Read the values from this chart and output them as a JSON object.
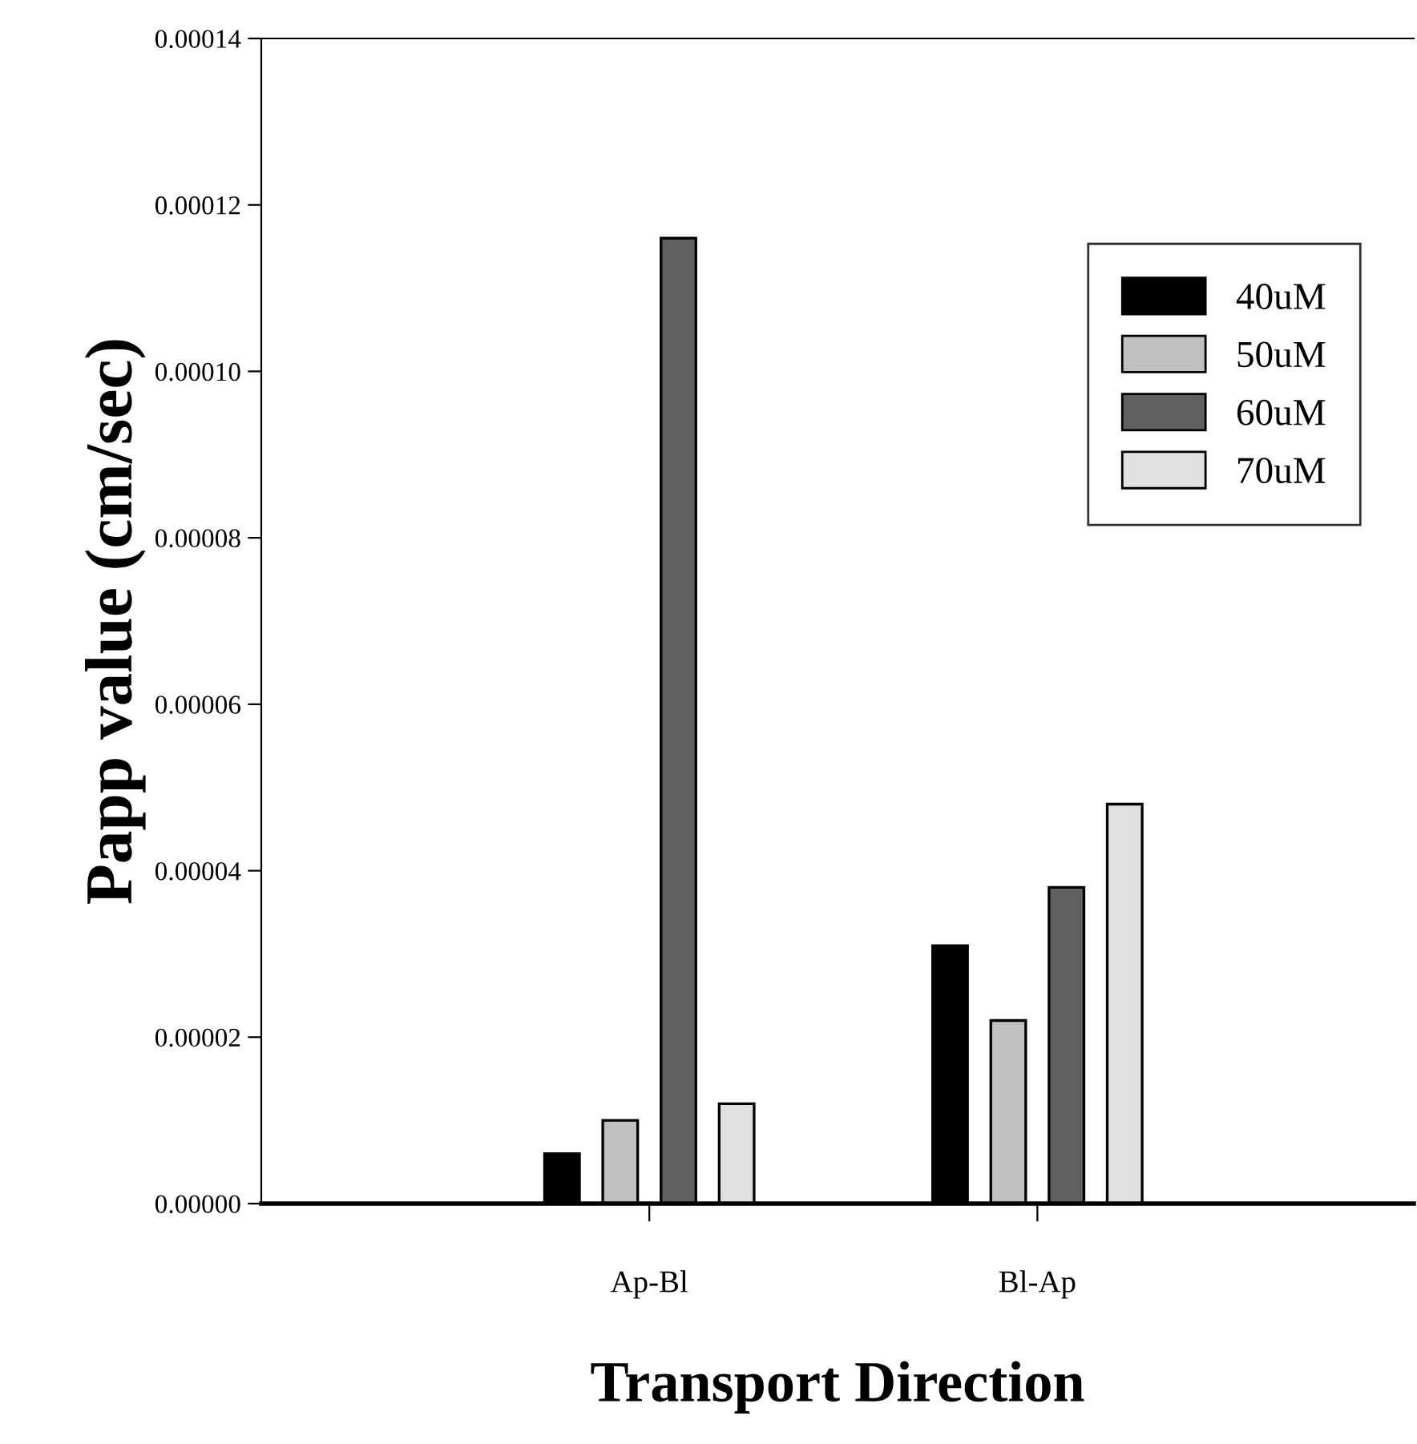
{
  "chart_data": {
    "type": "bar",
    "xlabel": "Transport Direction",
    "ylabel": "Papp value (cm/sec)",
    "categories": [
      "Ap-Bl",
      "Bl-Ap"
    ],
    "series": [
      {
        "name": "40uM",
        "color": "#000000",
        "values": [
          6e-06,
          3.1e-05
        ]
      },
      {
        "name": "50uM",
        "color": "#c0c0c0",
        "values": [
          1e-05,
          2.2e-05
        ]
      },
      {
        "name": "60uM",
        "color": "#606060",
        "values": [
          0.000116,
          3.8e-05
        ]
      },
      {
        "name": "70uM",
        "color": "#e0e0e0",
        "values": [
          1.2e-05,
          4.8e-05
        ]
      }
    ],
    "ylim": [
      0,
      0.00014
    ],
    "yticks": [
      {
        "value": 0,
        "label": "0.00000"
      },
      {
        "value": 2e-05,
        "label": "0.00002"
      },
      {
        "value": 4e-05,
        "label": "0.00004"
      },
      {
        "value": 6e-05,
        "label": "0.00006"
      },
      {
        "value": 8e-05,
        "label": "0.00008"
      },
      {
        "value": 0.0001,
        "label": "0.00010"
      },
      {
        "value": 0.00012,
        "label": "0.00012"
      },
      {
        "value": 0.00014,
        "label": "0.00014"
      }
    ],
    "grid": false,
    "legend": "top right"
  }
}
